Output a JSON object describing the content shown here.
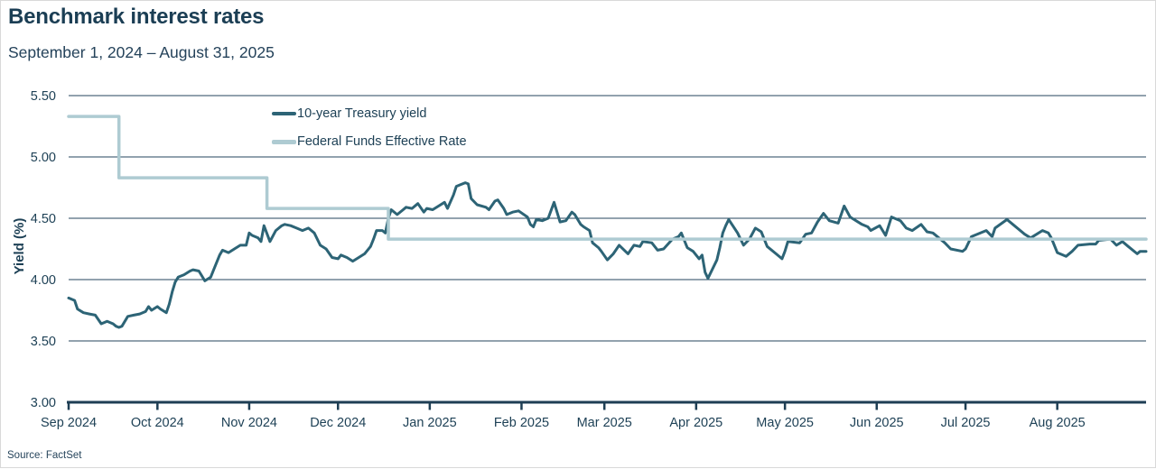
{
  "header": {
    "title": "Benchmark interest rates",
    "subtitle": "September 1, 2024 – August 31, 2025"
  },
  "footer": {
    "source": "Source: FactSet"
  },
  "chart_data": {
    "type": "line",
    "title": "Benchmark interest rates",
    "date_range": "September 1, 2024 – August 31, 2025",
    "xlabel": "",
    "ylabel": "Yield (%)",
    "ylim": [
      3.0,
      5.5
    ],
    "grid": "horizontal",
    "legend_position": "top-inside",
    "y_tick_values": [
      5.5,
      5.0,
      4.5,
      4.0,
      3.5,
      3.0
    ],
    "y_tick_labels": [
      "5.50",
      "5.00",
      "4.50",
      "4.00",
      "3.50",
      "3.00"
    ],
    "x_tick_labels": [
      "Sep 2024",
      "Oct 2024",
      "Nov 2024",
      "Dec 2024",
      "Jan 2025",
      "Feb 2025",
      "Mar 2025",
      "Apr 2025",
      "May 2025",
      "Jun 2025",
      "Jul 2025",
      "Aug 2025"
    ],
    "x_unit": "days since Sep 1, 2024",
    "x_range_days": [
      0,
      364
    ],
    "month_start_days": [
      0,
      30,
      61,
      91,
      122,
      153,
      181,
      212,
      242,
      273,
      303,
      334
    ],
    "series": [
      {
        "name": "10-year Treasury yield",
        "color": "#2d6476",
        "points": [
          [
            0,
            3.85
          ],
          [
            2,
            3.83
          ],
          [
            3,
            3.76
          ],
          [
            5,
            3.73
          ],
          [
            7,
            3.72
          ],
          [
            9,
            3.71
          ],
          [
            11,
            3.64
          ],
          [
            13,
            3.66
          ],
          [
            15,
            3.64
          ],
          [
            16,
            3.62
          ],
          [
            17,
            3.61
          ],
          [
            18,
            3.62
          ],
          [
            20,
            3.7
          ],
          [
            22,
            3.71
          ],
          [
            24,
            3.72
          ],
          [
            26,
            3.74
          ],
          [
            27,
            3.78
          ],
          [
            28,
            3.75
          ],
          [
            30,
            3.78
          ],
          [
            31,
            3.76
          ],
          [
            33,
            3.73
          ],
          [
            34,
            3.8
          ],
          [
            35,
            3.9
          ],
          [
            36,
            3.98
          ],
          [
            37,
            4.02
          ],
          [
            39,
            4.04
          ],
          [
            41,
            4.07
          ],
          [
            42,
            4.08
          ],
          [
            44,
            4.07
          ],
          [
            45,
            4.03
          ],
          [
            46,
            3.99
          ],
          [
            48,
            4.02
          ],
          [
            49,
            4.08
          ],
          [
            51,
            4.2
          ],
          [
            52,
            4.24
          ],
          [
            54,
            4.22
          ],
          [
            56,
            4.25
          ],
          [
            58,
            4.28
          ],
          [
            60,
            4.28
          ],
          [
            61,
            4.38
          ],
          [
            62,
            4.36
          ],
          [
            64,
            4.34
          ],
          [
            65,
            4.31
          ],
          [
            66,
            4.44
          ],
          [
            68,
            4.31
          ],
          [
            70,
            4.4
          ],
          [
            72,
            4.44
          ],
          [
            73,
            4.45
          ],
          [
            75,
            4.44
          ],
          [
            77,
            4.42
          ],
          [
            79,
            4.4
          ],
          [
            81,
            4.42
          ],
          [
            83,
            4.38
          ],
          [
            85,
            4.28
          ],
          [
            87,
            4.25
          ],
          [
            89,
            4.18
          ],
          [
            91,
            4.17
          ],
          [
            92,
            4.2
          ],
          [
            94,
            4.18
          ],
          [
            96,
            4.15
          ],
          [
            98,
            4.18
          ],
          [
            100,
            4.21
          ],
          [
            102,
            4.27
          ],
          [
            103,
            4.33
          ],
          [
            104,
            4.4
          ],
          [
            106,
            4.4
          ],
          [
            107,
            4.38
          ],
          [
            108,
            4.5
          ],
          [
            109,
            4.57
          ],
          [
            111,
            4.53
          ],
          [
            113,
            4.57
          ],
          [
            114,
            4.59
          ],
          [
            116,
            4.58
          ],
          [
            118,
            4.62
          ],
          [
            120,
            4.55
          ],
          [
            121,
            4.58
          ],
          [
            123,
            4.57
          ],
          [
            125,
            4.6
          ],
          [
            127,
            4.63
          ],
          [
            128,
            4.58
          ],
          [
            130,
            4.69
          ],
          [
            131,
            4.76
          ],
          [
            134,
            4.79
          ],
          [
            135,
            4.78
          ],
          [
            136,
            4.66
          ],
          [
            138,
            4.61
          ],
          [
            141,
            4.59
          ],
          [
            142,
            4.57
          ],
          [
            144,
            4.64
          ],
          [
            145,
            4.65
          ],
          [
            147,
            4.58
          ],
          [
            148,
            4.53
          ],
          [
            150,
            4.55
          ],
          [
            152,
            4.56
          ],
          [
            155,
            4.51
          ],
          [
            156,
            4.45
          ],
          [
            157,
            4.43
          ],
          [
            158,
            4.49
          ],
          [
            160,
            4.48
          ],
          [
            162,
            4.5
          ],
          [
            164,
            4.63
          ],
          [
            166,
            4.47
          ],
          [
            168,
            4.48
          ],
          [
            170,
            4.55
          ],
          [
            171,
            4.53
          ],
          [
            173,
            4.45
          ],
          [
            174,
            4.43
          ],
          [
            176,
            4.4
          ],
          [
            177,
            4.3
          ],
          [
            179,
            4.26
          ],
          [
            180,
            4.23
          ],
          [
            182,
            4.16
          ],
          [
            184,
            4.21
          ],
          [
            186,
            4.28
          ],
          [
            189,
            4.21
          ],
          [
            191,
            4.28
          ],
          [
            193,
            4.27
          ],
          [
            194,
            4.31
          ],
          [
            197,
            4.3
          ],
          [
            199,
            4.24
          ],
          [
            201,
            4.25
          ],
          [
            204,
            4.33
          ],
          [
            206,
            4.35
          ],
          [
            207,
            4.38
          ],
          [
            209,
            4.26
          ],
          [
            211,
            4.23
          ],
          [
            213,
            4.17
          ],
          [
            214,
            4.2
          ],
          [
            215,
            4.06
          ],
          [
            216,
            4.01
          ],
          [
            219,
            4.16
          ],
          [
            220,
            4.26
          ],
          [
            221,
            4.38
          ],
          [
            222,
            4.44
          ],
          [
            223,
            4.49
          ],
          [
            226,
            4.38
          ],
          [
            227,
            4.33
          ],
          [
            228,
            4.28
          ],
          [
            230,
            4.33
          ],
          [
            232,
            4.42
          ],
          [
            234,
            4.39
          ],
          [
            236,
            4.27
          ],
          [
            239,
            4.21
          ],
          [
            241,
            4.17
          ],
          [
            242,
            4.23
          ],
          [
            243,
            4.31
          ],
          [
            247,
            4.3
          ],
          [
            249,
            4.37
          ],
          [
            251,
            4.38
          ],
          [
            253,
            4.47
          ],
          [
            255,
            4.54
          ],
          [
            257,
            4.48
          ],
          [
            260,
            4.46
          ],
          [
            262,
            4.6
          ],
          [
            264,
            4.51
          ],
          [
            268,
            4.45
          ],
          [
            270,
            4.43
          ],
          [
            271,
            4.4
          ],
          [
            274,
            4.44
          ],
          [
            276,
            4.36
          ],
          [
            278,
            4.51
          ],
          [
            281,
            4.48
          ],
          [
            283,
            4.42
          ],
          [
            285,
            4.4
          ],
          [
            288,
            4.45
          ],
          [
            290,
            4.39
          ],
          [
            292,
            4.38
          ],
          [
            296,
            4.3
          ],
          [
            298,
            4.25
          ],
          [
            302,
            4.23
          ],
          [
            303,
            4.25
          ],
          [
            305,
            4.35
          ],
          [
            310,
            4.4
          ],
          [
            312,
            4.35
          ],
          [
            313,
            4.42
          ],
          [
            317,
            4.49
          ],
          [
            319,
            4.45
          ],
          [
            323,
            4.37
          ],
          [
            325,
            4.34
          ],
          [
            329,
            4.4
          ],
          [
            331,
            4.38
          ],
          [
            332,
            4.34
          ],
          [
            334,
            4.22
          ],
          [
            337,
            4.19
          ],
          [
            339,
            4.23
          ],
          [
            341,
            4.28
          ],
          [
            345,
            4.29
          ],
          [
            347,
            4.29
          ],
          [
            348,
            4.32
          ],
          [
            352,
            4.33
          ],
          [
            354,
            4.28
          ],
          [
            356,
            4.31
          ],
          [
            358,
            4.27
          ],
          [
            361,
            4.21
          ],
          [
            362,
            4.23
          ],
          [
            364,
            4.23
          ]
        ]
      },
      {
        "name": "Federal Funds Effective Rate",
        "color": "#aecbd2",
        "points": [
          [
            0,
            5.33
          ],
          [
            17,
            5.33
          ],
          [
            17,
            4.83
          ],
          [
            67,
            4.83
          ],
          [
            67,
            4.58
          ],
          [
            108,
            4.58
          ],
          [
            108,
            4.33
          ],
          [
            364,
            4.33
          ]
        ]
      }
    ],
    "colors": {
      "treasury_line": "#2d6476",
      "fed_funds_line": "#aecbd2",
      "gridline": "#25465e",
      "axis": "#1e3e54",
      "text": "#1e4156"
    },
    "source": "Source: FactSet"
  }
}
